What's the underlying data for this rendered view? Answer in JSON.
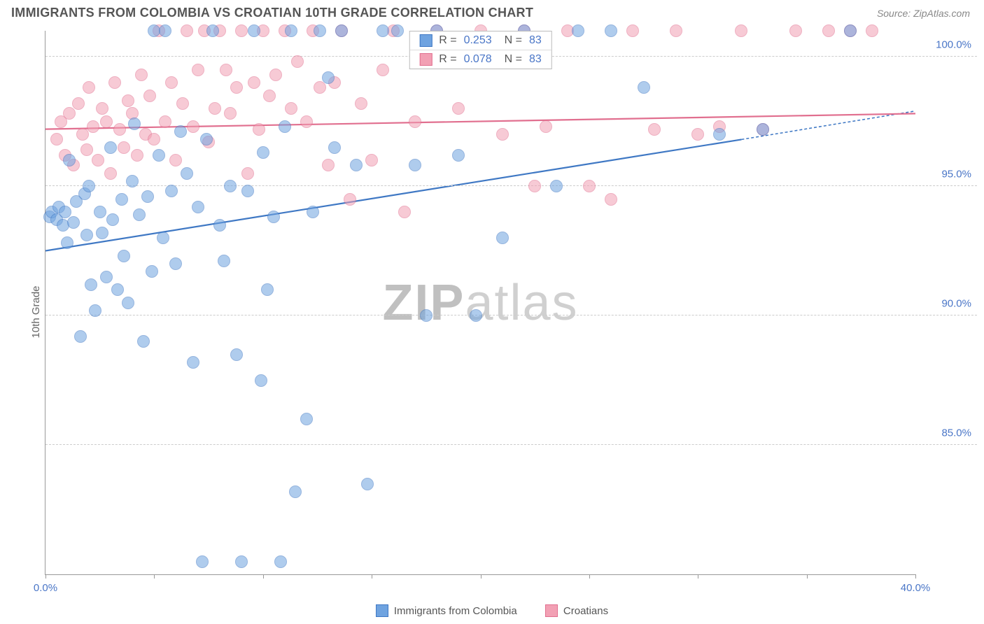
{
  "title": "IMMIGRANTS FROM COLOMBIA VS CROATIAN 10TH GRADE CORRELATION CHART",
  "source": "Source: ZipAtlas.com",
  "ylabel": "10th Grade",
  "watermark_a": "ZIP",
  "watermark_b": "atlas",
  "chart": {
    "type": "scatter",
    "background_color": "#ffffff",
    "grid_color": "#cccccc",
    "axis_color": "#999999",
    "xlim": [
      0,
      40
    ],
    "ylim": [
      80,
      101
    ],
    "xticks": [
      0,
      5,
      10,
      15,
      20,
      25,
      30,
      35,
      40
    ],
    "xtick_labels": {
      "0": "0.0%",
      "40": "40.0%"
    },
    "yticks": [
      85,
      90,
      95,
      100
    ],
    "ytick_labels": [
      "85.0%",
      "90.0%",
      "95.0%",
      "100.0%"
    ],
    "marker_radius": 9,
    "marker_opacity": 0.55,
    "label_fontsize": 15,
    "tick_color": "#4a76c7",
    "series": [
      {
        "name": "Immigrants from Colombia",
        "color": "#6fa3e0",
        "stroke": "#3f78c4",
        "r_label": "R =",
        "r_value": "0.253",
        "n_label": "N =",
        "n_value": "83",
        "trend": {
          "x1_pct": 0,
          "y1": 92.5,
          "x2_pct": 80,
          "y2": 96.8,
          "dash_to_pct": 100,
          "dash_y": 97.9,
          "width": 2.2
        },
        "points": [
          [
            0.2,
            93.8
          ],
          [
            0.3,
            94.0
          ],
          [
            0.5,
            93.7
          ],
          [
            0.6,
            94.2
          ],
          [
            0.8,
            93.5
          ],
          [
            0.9,
            94.0
          ],
          [
            1.0,
            92.8
          ],
          [
            1.1,
            96.0
          ],
          [
            1.3,
            93.6
          ],
          [
            1.4,
            94.4
          ],
          [
            1.6,
            89.2
          ],
          [
            1.8,
            94.7
          ],
          [
            1.9,
            93.1
          ],
          [
            2.0,
            95.0
          ],
          [
            2.1,
            91.2
          ],
          [
            2.3,
            90.2
          ],
          [
            2.5,
            94.0
          ],
          [
            2.6,
            93.2
          ],
          [
            2.8,
            91.5
          ],
          [
            3.0,
            96.5
          ],
          [
            3.1,
            93.7
          ],
          [
            3.3,
            91.0
          ],
          [
            3.5,
            94.5
          ],
          [
            3.6,
            92.3
          ],
          [
            3.8,
            90.5
          ],
          [
            4.0,
            95.2
          ],
          [
            4.1,
            97.4
          ],
          [
            4.3,
            93.9
          ],
          [
            4.5,
            89.0
          ],
          [
            4.7,
            94.6
          ],
          [
            4.9,
            91.7
          ],
          [
            5.0,
            101.0
          ],
          [
            5.2,
            96.2
          ],
          [
            5.4,
            93.0
          ],
          [
            5.5,
            101.0
          ],
          [
            5.8,
            94.8
          ],
          [
            6.0,
            92.0
          ],
          [
            6.2,
            97.1
          ],
          [
            6.5,
            95.5
          ],
          [
            6.8,
            88.2
          ],
          [
            7.0,
            94.2
          ],
          [
            7.2,
            80.5
          ],
          [
            7.4,
            96.8
          ],
          [
            7.7,
            101.0
          ],
          [
            8.0,
            93.5
          ],
          [
            8.2,
            92.1
          ],
          [
            8.5,
            95.0
          ],
          [
            8.8,
            88.5
          ],
          [
            9.0,
            80.5
          ],
          [
            9.3,
            94.8
          ],
          [
            9.6,
            101.0
          ],
          [
            9.9,
            87.5
          ],
          [
            10.0,
            96.3
          ],
          [
            10.2,
            91.0
          ],
          [
            10.5,
            93.8
          ],
          [
            10.8,
            80.5
          ],
          [
            11.0,
            97.3
          ],
          [
            11.3,
            101.0
          ],
          [
            11.5,
            83.2
          ],
          [
            12.0,
            86.0
          ],
          [
            12.3,
            94.0
          ],
          [
            12.6,
            101.0
          ],
          [
            13.0,
            99.2
          ],
          [
            13.3,
            96.5
          ],
          [
            13.6,
            101.0
          ],
          [
            14.3,
            95.8
          ],
          [
            14.8,
            83.5
          ],
          [
            15.5,
            101.0
          ],
          [
            16.2,
            101.0
          ],
          [
            17.0,
            95.8
          ],
          [
            17.5,
            90.0
          ],
          [
            18.0,
            101.0
          ],
          [
            19.0,
            96.2
          ],
          [
            19.8,
            90.0
          ],
          [
            21.0,
            93.0
          ],
          [
            22.0,
            101.0
          ],
          [
            23.5,
            95.0
          ],
          [
            24.5,
            101.0
          ],
          [
            26.0,
            101.0
          ],
          [
            27.5,
            98.8
          ],
          [
            31.0,
            97.0
          ],
          [
            33.0,
            97.2
          ],
          [
            37.0,
            101.0
          ]
        ]
      },
      {
        "name": "Croatians",
        "color": "#f2a0b4",
        "stroke": "#e16f8f",
        "r_label": "R =",
        "r_value": "0.078",
        "n_label": "N =",
        "n_value": "83",
        "trend": {
          "x1_pct": 0,
          "y1": 97.2,
          "x2_pct": 100,
          "y2": 97.8,
          "width": 2.2
        },
        "points": [
          [
            0.5,
            96.8
          ],
          [
            0.7,
            97.5
          ],
          [
            0.9,
            96.2
          ],
          [
            1.1,
            97.8
          ],
          [
            1.3,
            95.8
          ],
          [
            1.5,
            98.2
          ],
          [
            1.7,
            97.0
          ],
          [
            1.9,
            96.4
          ],
          [
            2.0,
            98.8
          ],
          [
            2.2,
            97.3
          ],
          [
            2.4,
            96.0
          ],
          [
            2.6,
            98.0
          ],
          [
            2.8,
            97.5
          ],
          [
            3.0,
            95.5
          ],
          [
            3.2,
            99.0
          ],
          [
            3.4,
            97.2
          ],
          [
            3.6,
            96.5
          ],
          [
            3.8,
            98.3
          ],
          [
            4.0,
            97.8
          ],
          [
            4.2,
            96.2
          ],
          [
            4.4,
            99.3
          ],
          [
            4.6,
            97.0
          ],
          [
            4.8,
            98.5
          ],
          [
            5.0,
            96.8
          ],
          [
            5.2,
            101.0
          ],
          [
            5.5,
            97.5
          ],
          [
            5.8,
            99.0
          ],
          [
            6.0,
            96.0
          ],
          [
            6.3,
            98.2
          ],
          [
            6.5,
            101.0
          ],
          [
            6.8,
            97.3
          ],
          [
            7.0,
            99.5
          ],
          [
            7.3,
            101.0
          ],
          [
            7.5,
            96.7
          ],
          [
            7.8,
            98.0
          ],
          [
            8.0,
            101.0
          ],
          [
            8.3,
            99.5
          ],
          [
            8.5,
            97.8
          ],
          [
            8.8,
            98.8
          ],
          [
            9.0,
            101.0
          ],
          [
            9.3,
            95.5
          ],
          [
            9.6,
            99.0
          ],
          [
            9.8,
            97.2
          ],
          [
            10.0,
            101.0
          ],
          [
            10.3,
            98.5
          ],
          [
            10.6,
            99.3
          ],
          [
            11.0,
            101.0
          ],
          [
            11.3,
            98.0
          ],
          [
            11.6,
            99.8
          ],
          [
            12.0,
            97.5
          ],
          [
            12.3,
            101.0
          ],
          [
            12.6,
            98.8
          ],
          [
            13.0,
            95.8
          ],
          [
            13.3,
            99.0
          ],
          [
            13.6,
            101.0
          ],
          [
            14.0,
            94.5
          ],
          [
            14.5,
            98.2
          ],
          [
            15.0,
            96.0
          ],
          [
            15.5,
            99.5
          ],
          [
            16.0,
            101.0
          ],
          [
            16.5,
            94.0
          ],
          [
            17.0,
            97.5
          ],
          [
            18.0,
            101.0
          ],
          [
            19.0,
            98.0
          ],
          [
            20.0,
            101.0
          ],
          [
            21.0,
            97.0
          ],
          [
            22.0,
            101.0
          ],
          [
            22.5,
            95.0
          ],
          [
            23.0,
            97.3
          ],
          [
            24.0,
            101.0
          ],
          [
            25.0,
            95.0
          ],
          [
            26.0,
            94.5
          ],
          [
            27.0,
            101.0
          ],
          [
            28.0,
            97.2
          ],
          [
            29.0,
            101.0
          ],
          [
            30.0,
            97.0
          ],
          [
            31.0,
            97.3
          ],
          [
            32.0,
            101.0
          ],
          [
            33.0,
            97.2
          ],
          [
            34.5,
            101.0
          ],
          [
            36.0,
            101.0
          ],
          [
            37.0,
            101.0
          ],
          [
            38.0,
            101.0
          ]
        ]
      }
    ]
  }
}
